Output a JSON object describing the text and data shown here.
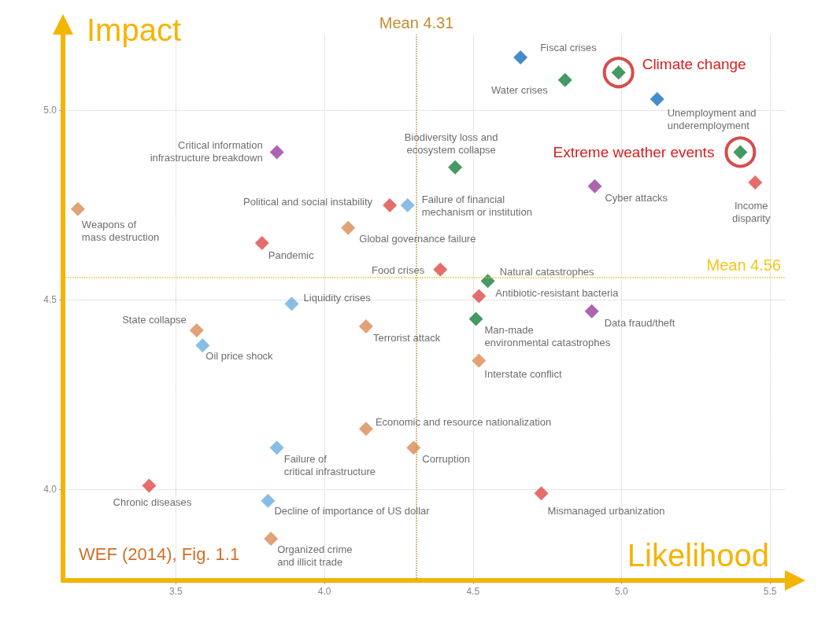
{
  "chart_data": {
    "type": "scatter",
    "xlabel": "Likelihood",
    "ylabel": "Impact",
    "xlim": [
      3.12,
      5.55
    ],
    "ylim": [
      3.76,
      5.2
    ],
    "xticks": [
      {
        "value": 3.5,
        "label": "3.5"
      },
      {
        "value": 4,
        "label": "4.0"
      },
      {
        "value": 4.5,
        "label": "4.5"
      },
      {
        "value": 5,
        "label": "5.0"
      },
      {
        "value": 5.5,
        "label": "5.5"
      }
    ],
    "yticks": [
      {
        "value": 4,
        "label": "4.0"
      },
      {
        "value": 4.5,
        "label": "4.5"
      },
      {
        "value": 5,
        "label": "5.0"
      }
    ],
    "grid": true,
    "marker": "diamond",
    "series": [
      {
        "color": "#1a6ec0",
        "x": [
          4.66,
          5.12
        ],
        "values": [
          5.14,
          5.03
        ]
      },
      {
        "color": "#6aaee0",
        "x": [
          4.28,
          3.89,
          3.59,
          3.84,
          3.81
        ],
        "values": [
          4.75,
          4.49,
          4.38,
          4.11,
          3.97
        ]
      },
      {
        "color": "#15803d",
        "x": [
          4.81,
          4.99,
          4.44,
          5.4,
          4.55,
          4.51
        ],
        "values": [
          5.08,
          5.1,
          4.85,
          4.89,
          4.55,
          4.45
        ]
      },
      {
        "color": "#9b3d9e",
        "x": [
          3.84,
          4.91,
          4.9
        ],
        "values": [
          4.89,
          4.8,
          4.47
        ]
      },
      {
        "color": "#e04848",
        "x": [
          5.45,
          4.22,
          3.79,
          4.39,
          4.52,
          3.41,
          4.73
        ],
        "values": [
          4.81,
          4.75,
          4.65,
          4.58,
          4.51,
          4.01,
          3.99
        ]
      },
      {
        "color": "#d98b55",
        "x": [
          3.17,
          4.08,
          4.14,
          3.57,
          4.52,
          4.14,
          4.3,
          3.82
        ],
        "values": [
          4.74,
          4.69,
          4.43,
          4.42,
          4.34,
          4.16,
          4.11,
          3.87
        ]
      },
      {
        "color": "#cc2020",
        "marker": "circle",
        "x": [
          4.99,
          5.4
        ],
        "values": [
          5.1,
          4.89
        ]
      }
    ],
    "ref_lines": [
      {
        "axis": "x",
        "value": 4.31,
        "label": "Mean 4.31",
        "color": "#c98a2e",
        "line_style": "dotted"
      },
      {
        "axis": "y",
        "value": 4.56,
        "label": "Mean 4.56",
        "color": "#f5c518",
        "line_style": "dotted"
      }
    ],
    "annotations": [
      {
        "text": "Fiscal crises",
        "x": 4.66,
        "y": 5.14
      },
      {
        "text": "Water crises",
        "x": 4.81,
        "y": 5.08
      },
      {
        "text": "Climate change",
        "x": 4.99,
        "y": 5.1
      },
      {
        "text": "Unemployment and\nunderemployment",
        "x": 5.12,
        "y": 5.03
      },
      {
        "text": "Critical information\ninfrastructure breakdown",
        "x": 3.84,
        "y": 4.89
      },
      {
        "text": "Biodiversity loss and\necosystem collapse",
        "x": 4.44,
        "y": 4.85
      },
      {
        "text": "Extreme weather events",
        "x": 5.4,
        "y": 4.89
      },
      {
        "text": "Income\ndisparity",
        "x": 5.45,
        "y": 4.81
      },
      {
        "text": "Cyber attacks",
        "x": 4.91,
        "y": 4.8
      },
      {
        "text": "Political and social instability",
        "x": 4.22,
        "y": 4.75
      },
      {
        "text": "Failure of financial\nmechanism or institution",
        "x": 4.28,
        "y": 4.75
      },
      {
        "text": "Weapons of\nmass destruction",
        "x": 3.17,
        "y": 4.74
      },
      {
        "text": "Global governance failure",
        "x": 4.08,
        "y": 4.69
      },
      {
        "text": "Pandemic",
        "x": 3.79,
        "y": 4.65
      },
      {
        "text": "Food crises",
        "x": 4.39,
        "y": 4.58
      },
      {
        "text": "Natural catastrophes",
        "x": 4.55,
        "y": 4.55
      },
      {
        "text": "Antibiotic-resistant bacteria",
        "x": 4.52,
        "y": 4.51
      },
      {
        "text": "Liquidity crises",
        "x": 3.89,
        "y": 4.49
      },
      {
        "text": "Data fraud/theft",
        "x": 4.9,
        "y": 4.47
      },
      {
        "text": "Man-made\nenvironmental catastrophes",
        "x": 4.51,
        "y": 4.45
      },
      {
        "text": "Terrorist attack",
        "x": 4.14,
        "y": 4.43
      },
      {
        "text": "State collapse",
        "x": 3.57,
        "y": 4.42
      },
      {
        "text": "Oil price shock",
        "x": 3.59,
        "y": 4.38
      },
      {
        "text": "Interstate conflict",
        "x": 4.52,
        "y": 4.34
      },
      {
        "text": "Economic and resource nationalization",
        "x": 4.14,
        "y": 4.16
      },
      {
        "text": "Failure of\ncritical infrastructure",
        "x": 3.84,
        "y": 4.11
      },
      {
        "text": "Corruption",
        "x": 4.3,
        "y": 4.11
      },
      {
        "text": "Chronic diseases",
        "x": 3.41,
        "y": 4.01
      },
      {
        "text": "Mismanaged urbanization",
        "x": 4.73,
        "y": 3.99
      },
      {
        "text": "Decline of importance of US dollar",
        "x": 3.81,
        "y": 3.97
      },
      {
        "text": "Organized crime\nand illicit trade",
        "x": 3.82,
        "y": 3.87
      },
      "WEF (2014), Fig. 1.1"
    ]
  }
}
